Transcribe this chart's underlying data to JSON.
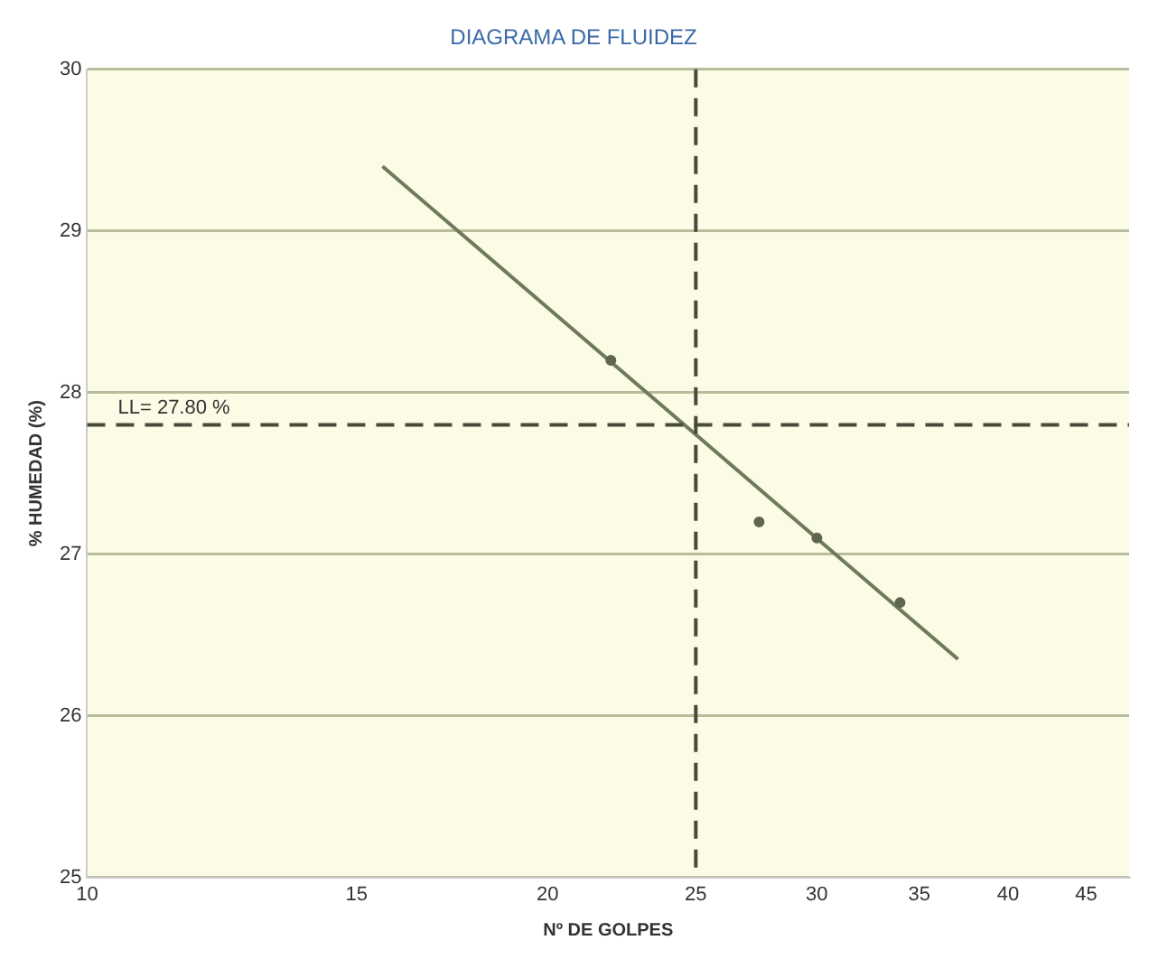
{
  "chart_data": {
    "type": "scatter",
    "title": "DIAGRAMA DE FLUIDEZ",
    "xlabel": "Nº DE GOLPES",
    "ylabel": "% HUMEDAD (%)",
    "log": "x",
    "xlim": [
      10,
      48
    ],
    "xticks": [
      10,
      15,
      20,
      25,
      30,
      35,
      40,
      45
    ],
    "ylim": [
      25,
      30
    ],
    "yticks": [
      25,
      26,
      27,
      28,
      29,
      30
    ],
    "grid": "y",
    "marker": "circle",
    "series": [
      {
        "color": "#5f6650",
        "x": [
          22,
          27.5,
          30,
          34
        ],
        "values": [
          28.2,
          27.2,
          27.1,
          26.7
        ]
      },
      {
        "type": "line",
        "color": "#6e7a5a",
        "x": [
          15.6,
          37.1
        ],
        "values": [
          29.4,
          26.35
        ],
        "marker": "none"
      }
    ],
    "ref_lines": [
      {
        "axis": "y",
        "value": 27.8,
        "label": "LL= 27.80 %",
        "color": "#4a4a3a",
        "line_style": "dashed"
      },
      {
        "axis": "x",
        "value": 25,
        "color": "#4a4a3a",
        "line_style": "dashed"
      }
    ]
  }
}
